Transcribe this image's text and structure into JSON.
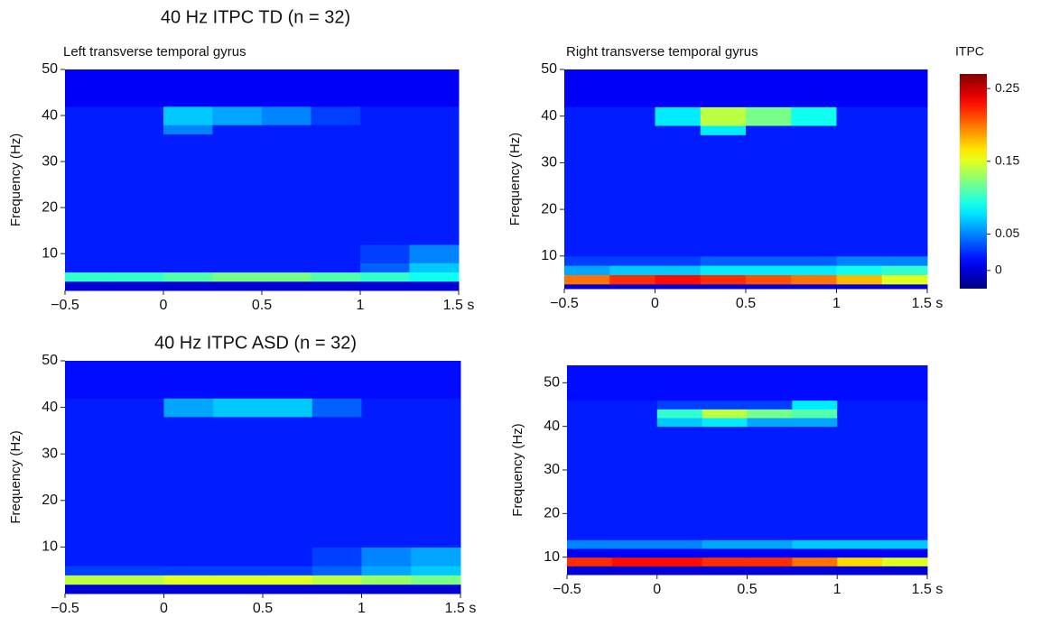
{
  "chart_data": [
    {
      "type": "heatmap",
      "title": "40 Hz ITPC TD (n = 32)",
      "subtitle": "Left transverse temporal gyrus",
      "y_label": "Frequency (Hz)",
      "colormap": "jet",
      "xlim": [
        -0.5,
        1.5
      ],
      "ylim": [
        2,
        50
      ],
      "xticks": [
        {
          "value": -0.5,
          "label": "−0.5"
        },
        0,
        0.5,
        1,
        {
          "value": 1.5,
          "label": "1.5 s"
        }
      ],
      "yticks": [
        10,
        20,
        30,
        40,
        50
      ],
      "x_bins": [
        -0.5,
        -0.25,
        0,
        0.25,
        0.5,
        0.75,
        1,
        1.25,
        1.5
      ],
      "y_bins": [
        2,
        4,
        6,
        8,
        12,
        36,
        38,
        42,
        50
      ],
      "values": [
        [
          0,
          0,
          0,
          0,
          0,
          0,
          0,
          0
        ],
        [
          0.1,
          0.1,
          0.11,
          0.12,
          0.12,
          0.11,
          0.1,
          0.09
        ],
        [
          0.02,
          0.02,
          0.02,
          0.02,
          0.02,
          0.02,
          0.04,
          0.07
        ],
        [
          0.02,
          0.02,
          0.02,
          0.02,
          0.02,
          0.02,
          0.03,
          0.05
        ],
        [
          0.02,
          0.02,
          0.02,
          0.02,
          0.02,
          0.02,
          0.02,
          0.02
        ],
        [
          0.02,
          0.02,
          0.05,
          0.02,
          0.02,
          0.02,
          0.02,
          0.02
        ],
        [
          0.02,
          0.02,
          0.07,
          0.06,
          0.05,
          0.03,
          0.02,
          0.02
        ],
        [
          0.01,
          0.01,
          0.01,
          0.01,
          0.01,
          0.01,
          0.01,
          0.01
        ]
      ]
    },
    {
      "type": "heatmap",
      "subtitle": "Right transverse temporal gyrus",
      "y_label": "Frequency (Hz)",
      "colormap": "jet",
      "xlim": [
        -0.5,
        1.5
      ],
      "ylim": [
        3,
        50
      ],
      "xticks": [
        {
          "value": -0.5,
          "label": "−0.5"
        },
        0,
        0.5,
        1,
        {
          "value": 1.5,
          "label": "1.5 s"
        }
      ],
      "yticks": [
        10,
        20,
        30,
        40,
        50
      ],
      "x_bins": [
        -0.5,
        -0.25,
        0,
        0.25,
        0.5,
        0.75,
        1,
        1.25,
        1.5
      ],
      "y_bins": [
        3,
        4,
        6,
        8,
        10,
        12,
        36,
        38,
        42,
        50
      ],
      "values": [
        [
          0,
          0,
          0,
          0,
          0,
          0,
          0,
          0
        ],
        [
          0.2,
          0.22,
          0.23,
          0.22,
          0.21,
          0.2,
          0.18,
          0.15
        ],
        [
          0.06,
          0.07,
          0.07,
          0.08,
          0.08,
          0.08,
          0.09,
          0.1
        ],
        [
          0.03,
          0.03,
          0.03,
          0.04,
          0.04,
          0.04,
          0.05,
          0.05
        ],
        [
          0.02,
          0.02,
          0.02,
          0.02,
          0.02,
          0.02,
          0.02,
          0.02
        ],
        [
          0.02,
          0.02,
          0.02,
          0.02,
          0.02,
          0.02,
          0.02,
          0.02
        ],
        [
          0.02,
          0.02,
          0.02,
          0.08,
          0.02,
          0.02,
          0.02,
          0.02
        ],
        [
          0.02,
          0.02,
          0.08,
          0.14,
          0.12,
          0.09,
          0.02,
          0.02
        ],
        [
          0.01,
          0.01,
          0.01,
          0.01,
          0.01,
          0.01,
          0.01,
          0.01
        ]
      ]
    },
    {
      "type": "heatmap",
      "title": "40 Hz ITPC ASD (n = 32)",
      "y_label": "Frequency (Hz)",
      "colormap": "jet",
      "xlim": [
        -0.5,
        1.5
      ],
      "ylim": [
        0,
        50
      ],
      "xticks": [
        {
          "value": -0.5,
          "label": "−0.5"
        },
        0,
        0.5,
        1,
        {
          "value": 1.5,
          "label": "1.5 s"
        }
      ],
      "yticks": [
        10,
        20,
        30,
        40,
        50
      ],
      "x_bins": [
        -0.5,
        -0.25,
        0,
        0.25,
        0.5,
        0.75,
        1,
        1.25,
        1.5
      ],
      "y_bins": [
        0,
        2,
        4,
        6,
        10,
        38,
        42,
        50
      ],
      "values": [
        [
          0,
          0,
          0,
          0,
          0,
          0,
          0,
          0
        ],
        [
          0.14,
          0.14,
          0.15,
          0.15,
          0.15,
          0.14,
          0.13,
          0.12
        ],
        [
          0.03,
          0.03,
          0.03,
          0.03,
          0.03,
          0.04,
          0.06,
          0.07
        ],
        [
          0.02,
          0.02,
          0.02,
          0.02,
          0.02,
          0.03,
          0.05,
          0.06
        ],
        [
          0.02,
          0.02,
          0.02,
          0.02,
          0.02,
          0.02,
          0.02,
          0.02
        ],
        [
          0.02,
          0.02,
          0.06,
          0.07,
          0.07,
          0.04,
          0.02,
          0.02
        ],
        [
          0.015,
          0.015,
          0.015,
          0.015,
          0.015,
          0.015,
          0.015,
          0.015
        ]
      ]
    },
    {
      "type": "heatmap",
      "y_label": "Frequency (Hz)",
      "colormap": "jet",
      "xlim": [
        -0.5,
        1.5
      ],
      "ylim": [
        6,
        54
      ],
      "xticks": [
        {
          "value": -0.5,
          "label": "−0.5"
        },
        0,
        0.5,
        1,
        {
          "value": 1.5,
          "label": "1.5 s"
        }
      ],
      "yticks": [
        10,
        20,
        30,
        40,
        50
      ],
      "x_bins": [
        -0.5,
        -0.25,
        0,
        0.25,
        0.5,
        0.75,
        1,
        1.25,
        1.5
      ],
      "y_bins": [
        6,
        8,
        10,
        12,
        14,
        40,
        42,
        44,
        46,
        54
      ],
      "values": [
        [
          0,
          0,
          0,
          0,
          0,
          0,
          0,
          0
        ],
        [
          0.22,
          0.23,
          0.23,
          0.22,
          0.22,
          0.2,
          0.17,
          0.15
        ],
        [
          0.01,
          0.01,
          0.01,
          0.01,
          0.01,
          0.01,
          0.01,
          0.01
        ],
        [
          0.05,
          0.05,
          0.05,
          0.06,
          0.06,
          0.07,
          0.07,
          0.07
        ],
        [
          0.02,
          0.02,
          0.02,
          0.02,
          0.02,
          0.02,
          0.02,
          0.02
        ],
        [
          0.02,
          0.02,
          0.07,
          0.08,
          0.06,
          0.06,
          0.02,
          0.02
        ],
        [
          0.02,
          0.02,
          0.1,
          0.14,
          0.12,
          0.11,
          0.02,
          0.02
        ],
        [
          0.02,
          0.02,
          0.03,
          0.03,
          0.03,
          0.08,
          0.02,
          0.02
        ],
        [
          0.015,
          0.015,
          0.015,
          0.015,
          0.015,
          0.015,
          0.015,
          0.015
        ]
      ]
    }
  ],
  "colorbar": {
    "label": "ITPC",
    "colormap": "jet",
    "clim": [
      -0.025,
      0.27
    ],
    "ticks": [
      0,
      0.05,
      0.15,
      0.25
    ]
  }
}
